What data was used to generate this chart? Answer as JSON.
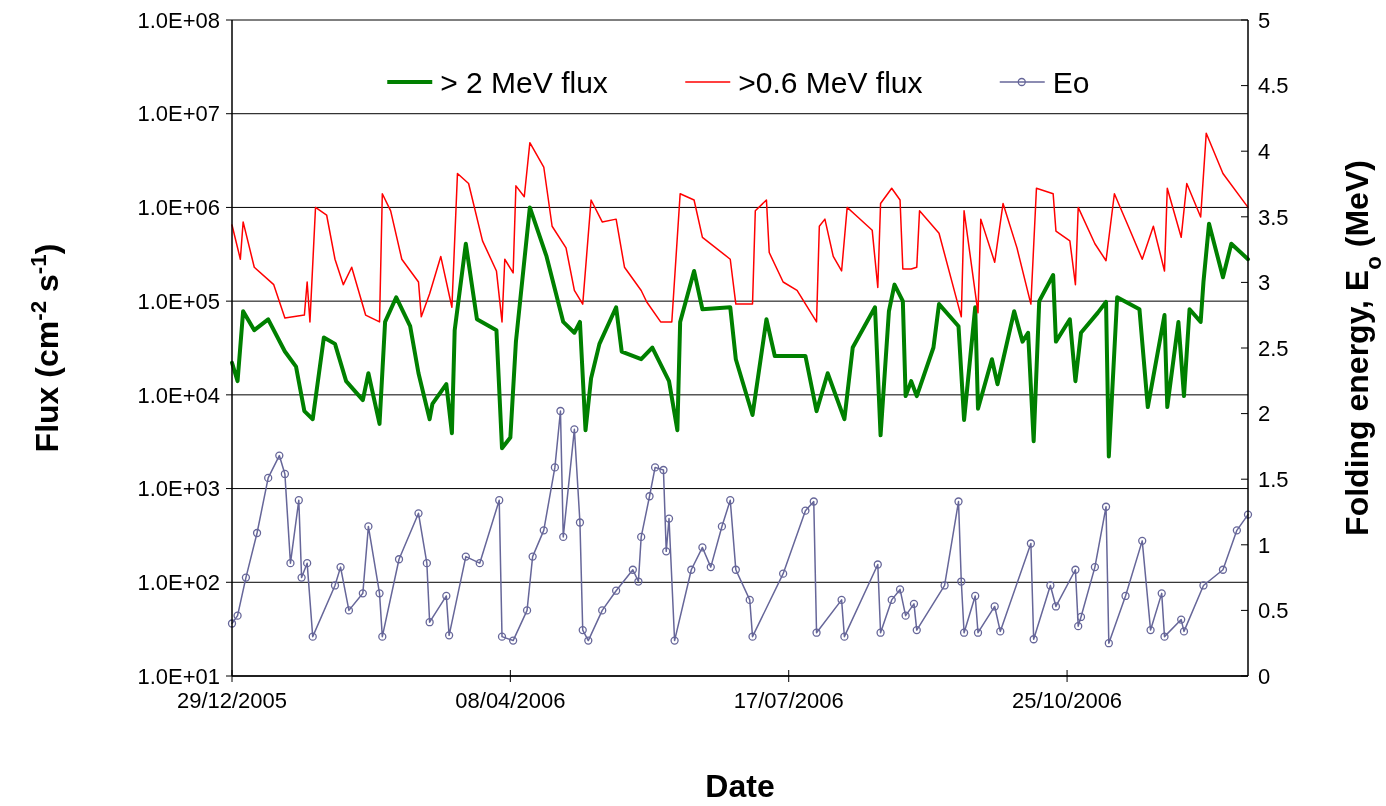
{
  "chart_data": {
    "type": "line",
    "xlabel": "Date",
    "ylabel": "Flux (cm$^{-2}$ s$^{-1}$)",
    "y2label": "Folding energy, E$_{o}$ (MeV)",
    "log": "y",
    "grid": "y",
    "legend": "top",
    "xlim": [
      "2005-12-29",
      "2006-12-29"
    ],
    "xticks": [
      {
        "value": "2005-12-29",
        "label": "29/12/2005"
      },
      {
        "value": "2006-04-08",
        "label": "08/04/2006"
      },
      {
        "value": "2006-07-17",
        "label": "17/07/2006"
      },
      {
        "value": "2006-10-25",
        "label": "25/10/2006"
      }
    ],
    "ylim": [
      10,
      100000000
    ],
    "yticks": [
      {
        "value": 10,
        "label": "1.0E+01"
      },
      {
        "value": 100,
        "label": "1.0E+02"
      },
      {
        "value": 1000,
        "label": "1.0E+03"
      },
      {
        "value": 10000,
        "label": "1.0E+04"
      },
      {
        "value": 100000,
        "label": "1.0E+05"
      },
      {
        "value": 1000000,
        "label": "1.0E+06"
      },
      {
        "value": 10000000,
        "label": "1.0E+07"
      },
      {
        "value": 100000000,
        "label": "1.0E+08"
      }
    ],
    "y2lim": [
      0,
      5
    ],
    "y2ticks": [
      0,
      0.5,
      1,
      1.5,
      2,
      2.5,
      3,
      3.5,
      4,
      4.5,
      5
    ],
    "series": [
      {
        "name": "> 2 MeV flux",
        "color": "#008000",
        "marker": "none",
        "x": [
          "2005-12-29",
          "2005-12-31",
          "2006-01-02",
          "2006-01-06",
          "2006-01-11",
          "2006-01-17",
          "2006-01-21",
          "2006-01-24",
          "2006-01-27",
          "2006-01-31",
          "2006-02-04",
          "2006-02-08",
          "2006-02-14",
          "2006-02-16",
          "2006-02-20",
          "2006-02-22",
          "2006-02-26",
          "2006-03-03",
          "2006-03-06",
          "2006-03-10",
          "2006-03-11",
          "2006-03-16",
          "2006-03-18",
          "2006-03-19",
          "2006-03-23",
          "2006-03-27",
          "2006-04-03",
          "2006-04-05",
          "2006-04-08",
          "2006-04-10",
          "2006-04-15",
          "2006-04-21",
          "2006-04-27",
          "2006-05-01",
          "2006-05-03",
          "2006-05-05",
          "2006-05-07",
          "2006-05-10",
          "2006-05-16",
          "2006-05-18",
          "2006-05-25",
          "2006-05-29",
          "2006-06-04",
          "2006-06-07",
          "2006-06-08",
          "2006-06-13",
          "2006-06-16",
          "2006-06-26",
          "2006-06-28",
          "2006-07-04",
          "2006-07-09",
          "2006-07-12",
          "2006-07-23",
          "2006-07-27",
          "2006-07-31",
          "2006-08-06",
          "2006-08-09",
          "2006-08-17",
          "2006-08-19",
          "2006-08-22",
          "2006-08-24",
          "2006-08-27",
          "2006-08-28",
          "2006-08-30",
          "2006-09-01",
          "2006-09-07",
          "2006-09-09",
          "2006-09-16",
          "2006-09-18",
          "2006-09-22",
          "2006-09-23",
          "2006-09-28",
          "2006-09-30",
          "2006-10-06",
          "2006-10-09",
          "2006-10-11",
          "2006-10-13",
          "2006-10-15",
          "2006-10-20",
          "2006-10-21",
          "2006-10-26",
          "2006-10-28",
          "2006-10-30",
          "2006-11-05",
          "2006-11-08",
          "2006-11-09",
          "2006-11-12",
          "2006-11-20",
          "2006-11-23",
          "2006-11-29",
          "2006-11-30",
          "2006-12-04",
          "2006-12-06",
          "2006-12-08",
          "2006-12-12",
          "2006-12-13",
          "2006-12-15",
          "2006-12-20",
          "2006-12-23",
          "2006-12-29"
        ],
        "values": [
          22000,
          14000,
          78000,
          49000,
          64000,
          29000,
          20000,
          6700,
          5500,
          41000,
          35000,
          14000,
          8800,
          17000,
          4900,
          60000,
          110000,
          54000,
          17000,
          5500,
          8000,
          13000,
          3900,
          49000,
          410000,
          64000,
          49000,
          2700,
          3500,
          37000,
          1000000,
          300000,
          60000,
          46000,
          60000,
          4200,
          15000,
          35000,
          86000,
          29000,
          24000,
          32000,
          14000,
          4200,
          60000,
          210000,
          82000,
          86000,
          24000,
          6100,
          64000,
          26000,
          26000,
          6700,
          17000,
          5500,
          32000,
          86000,
          3700,
          78000,
          150000,
          100000,
          9700,
          14000,
          9700,
          32000,
          93000,
          54000,
          5400,
          86000,
          7100,
          24000,
          13000,
          78000,
          37000,
          46000,
          3200,
          100000,
          190000,
          37000,
          64000,
          14000,
          46000,
          75000,
          98000,
          2200,
          110000,
          82000,
          7400,
          71000,
          7400,
          60000,
          9700,
          82000,
          60000,
          160000,
          670000,
          180000,
          410000,
          280000
        ]
      },
      {
        "name": ">0.6 MeV flux",
        "color": "#ff0000",
        "marker": "none",
        "x": [
          "2005-12-29",
          "2006-01-01",
          "2006-01-02",
          "2006-01-06",
          "2006-01-13",
          "2006-01-17",
          "2006-01-24",
          "2006-01-25",
          "2006-01-26",
          "2006-01-28",
          "2006-02-01",
          "2006-02-04",
          "2006-02-07",
          "2006-02-10",
          "2006-02-15",
          "2006-02-20",
          "2006-02-21",
          "2006-02-24",
          "2006-02-28",
          "2006-03-06",
          "2006-03-07",
          "2006-03-10",
          "2006-03-14",
          "2006-03-18",
          "2006-03-20",
          "2006-03-24",
          "2006-03-29",
          "2006-04-03",
          "2006-04-05",
          "2006-04-06",
          "2006-04-09",
          "2006-04-10",
          "2006-04-13",
          "2006-04-15",
          "2006-04-20",
          "2006-04-23",
          "2006-04-28",
          "2006-05-01",
          "2006-05-04",
          "2006-05-07",
          "2006-05-11",
          "2006-05-16",
          "2006-05-19",
          "2006-05-25",
          "2006-05-27",
          "2006-06-01",
          "2006-06-05",
          "2006-06-08",
          "2006-06-13",
          "2006-06-16",
          "2006-06-26",
          "2006-06-28",
          "2006-07-04",
          "2006-07-05",
          "2006-07-09",
          "2006-07-10",
          "2006-07-15",
          "2006-07-20",
          "2006-07-27",
          "2006-07-28",
          "2006-07-30",
          "2006-08-02",
          "2006-08-05",
          "2006-08-07",
          "2006-08-10",
          "2006-08-16",
          "2006-08-18",
          "2006-08-19",
          "2006-08-23",
          "2006-08-26",
          "2006-08-27",
          "2006-08-30",
          "2006-09-01",
          "2006-09-02",
          "2006-09-09",
          "2006-09-17",
          "2006-09-18",
          "2006-09-23",
          "2006-09-24",
          "2006-09-29",
          "2006-10-02",
          "2006-10-07",
          "2006-10-12",
          "2006-10-14",
          "2006-10-20",
          "2006-10-21",
          "2006-10-26",
          "2006-10-28",
          "2006-10-29",
          "2006-11-04",
          "2006-11-08",
          "2006-11-11",
          "2006-11-16",
          "2006-11-21",
          "2006-11-25",
          "2006-11-29",
          "2006-11-30",
          "2006-12-05",
          "2006-12-07",
          "2006-12-12",
          "2006-12-14",
          "2006-12-20",
          "2006-12-29"
        ],
        "values": [
          650000,
          280000,
          700000,
          230000,
          150000,
          66000,
          71000,
          160000,
          60000,
          1000000,
          830000,
          280000,
          150000,
          230000,
          71000,
          60000,
          1400000,
          920000,
          280000,
          160000,
          68000,
          120000,
          300000,
          86000,
          2300000,
          1800000,
          440000,
          210000,
          60000,
          280000,
          200000,
          1700000,
          1300000,
          4900000,
          2700000,
          630000,
          370000,
          130000,
          93000,
          1200000,
          700000,
          750000,
          230000,
          130000,
          98000,
          60000,
          60000,
          1400000,
          1200000,
          480000,
          280000,
          93000,
          93000,
          920000,
          1200000,
          330000,
          160000,
          130000,
          60000,
          630000,
          750000,
          300000,
          210000,
          1000000,
          830000,
          570000,
          140000,
          1100000,
          1600000,
          1200000,
          220000,
          220000,
          230000,
          920000,
          530000,
          68000,
          920000,
          75000,
          750000,
          260000,
          1100000,
          370000,
          93000,
          1600000,
          1400000,
          560000,
          440000,
          150000,
          1000000,
          410000,
          270000,
          1400000,
          630000,
          280000,
          630000,
          210000,
          1600000,
          480000,
          1800000,
          790000,
          6200000,
          2300000,
          1000000
        ]
      },
      {
        "name": "Eo",
        "color": "#666699",
        "marker": "circle",
        "axis": "y2",
        "x": [
          "2005-12-29",
          "2005-12-31",
          "2006-01-03",
          "2006-01-07",
          "2006-01-11",
          "2006-01-15",
          "2006-01-17",
          "2006-01-19",
          "2006-01-22",
          "2006-01-23",
          "2006-01-25",
          "2006-01-27",
          "2006-02-04",
          "2006-02-06",
          "2006-02-09",
          "2006-02-14",
          "2006-02-16",
          "2006-02-20",
          "2006-02-21",
          "2006-02-27",
          "2006-03-06",
          "2006-03-09",
          "2006-03-10",
          "2006-03-16",
          "2006-03-17",
          "2006-03-23",
          "2006-03-28",
          "2006-04-04",
          "2006-04-05",
          "2006-04-09",
          "2006-04-14",
          "2006-04-16",
          "2006-04-20",
          "2006-04-24",
          "2006-04-26",
          "2006-04-27",
          "2006-05-01",
          "2006-05-03",
          "2006-05-04",
          "2006-05-06",
          "2006-05-11",
          "2006-05-16",
          "2006-05-22",
          "2006-05-24",
          "2006-05-25",
          "2006-05-28",
          "2006-05-30",
          "2006-06-02",
          "2006-06-03",
          "2006-06-04",
          "2006-06-06",
          "2006-06-12",
          "2006-06-16",
          "2006-06-19",
          "2006-06-23",
          "2006-06-26",
          "2006-06-28",
          "2006-07-03",
          "2006-07-04",
          "2006-07-15",
          "2006-07-23",
          "2006-07-26",
          "2006-07-27",
          "2006-08-05",
          "2006-08-06",
          "2006-08-18",
          "2006-08-19",
          "2006-08-23",
          "2006-08-26",
          "2006-08-28",
          "2006-08-31",
          "2006-09-01",
          "2006-09-11",
          "2006-09-16",
          "2006-09-17",
          "2006-09-18",
          "2006-09-22",
          "2006-09-23",
          "2006-09-29",
          "2006-10-01",
          "2006-10-12",
          "2006-10-13",
          "2006-10-19",
          "2006-10-21",
          "2006-10-28",
          "2006-10-29",
          "2006-10-30",
          "2006-11-04",
          "2006-11-08",
          "2006-11-09",
          "2006-11-15",
          "2006-11-21",
          "2006-11-24",
          "2006-11-28",
          "2006-11-29",
          "2006-12-05",
          "2006-12-06",
          "2006-12-13",
          "2006-12-20",
          "2006-12-25",
          "2006-12-29"
        ],
        "values": [
          0.4,
          0.46,
          0.75,
          1.09,
          1.51,
          1.68,
          1.54,
          0.86,
          1.34,
          0.75,
          0.86,
          0.3,
          0.69,
          0.83,
          0.5,
          0.63,
          1.14,
          0.63,
          0.3,
          0.89,
          1.24,
          0.86,
          0.41,
          0.61,
          0.31,
          0.91,
          0.86,
          1.34,
          0.3,
          0.27,
          0.5,
          0.91,
          1.11,
          1.59,
          2.02,
          1.06,
          1.88,
          1.17,
          0.35,
          0.27,
          0.5,
          0.65,
          0.81,
          0.72,
          1.06,
          1.37,
          1.59,
          1.57,
          0.95,
          1.2,
          0.27,
          0.81,
          0.98,
          0.83,
          1.14,
          1.34,
          0.81,
          0.58,
          0.3,
          0.78,
          1.26,
          1.33,
          0.33,
          0.58,
          0.3,
          0.85,
          0.33,
          0.58,
          0.66,
          0.46,
          0.55,
          0.35,
          0.69,
          1.33,
          0.72,
          0.33,
          0.61,
          0.33,
          0.53,
          0.34,
          1.01,
          0.28,
          0.69,
          0.53,
          0.81,
          0.38,
          0.45,
          0.83,
          1.29,
          0.25,
          0.61,
          1.03,
          0.35,
          0.63,
          0.3,
          0.43,
          0.34,
          0.69,
          0.81,
          1.11,
          1.23
        ]
      }
    ]
  }
}
